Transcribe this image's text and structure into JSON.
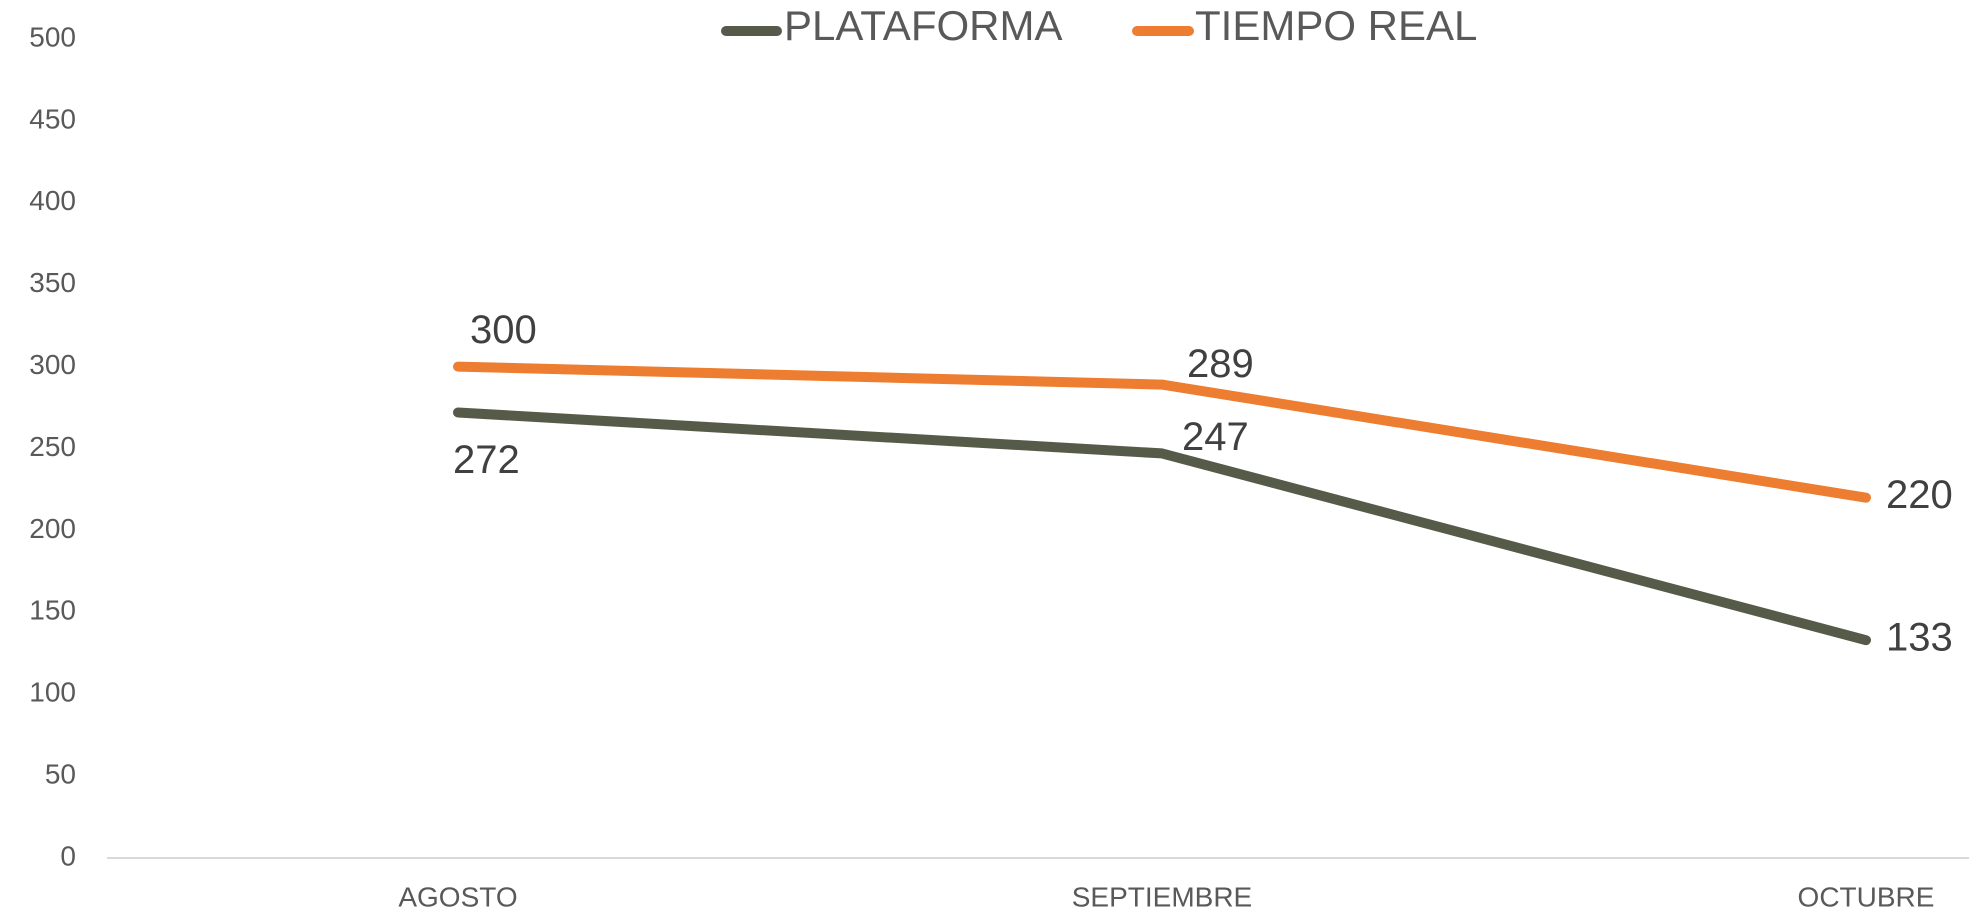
{
  "chart_data": {
    "type": "line",
    "categories": [
      "AGOSTO",
      "SEPTIEMBRE",
      "OCTUBRE"
    ],
    "series": [
      {
        "name": "PLATAFORMA",
        "color": "#565a48",
        "values": [
          272,
          247,
          133
        ]
      },
      {
        "name": "TIEMPO REAL",
        "color": "#ed7d31",
        "values": [
          300,
          289,
          220
        ]
      }
    ],
    "ylim": [
      0,
      500
    ],
    "yticks": [
      0,
      50,
      100,
      150,
      200,
      250,
      300,
      350,
      400,
      450,
      500
    ],
    "grid": false,
    "legend": "top"
  }
}
